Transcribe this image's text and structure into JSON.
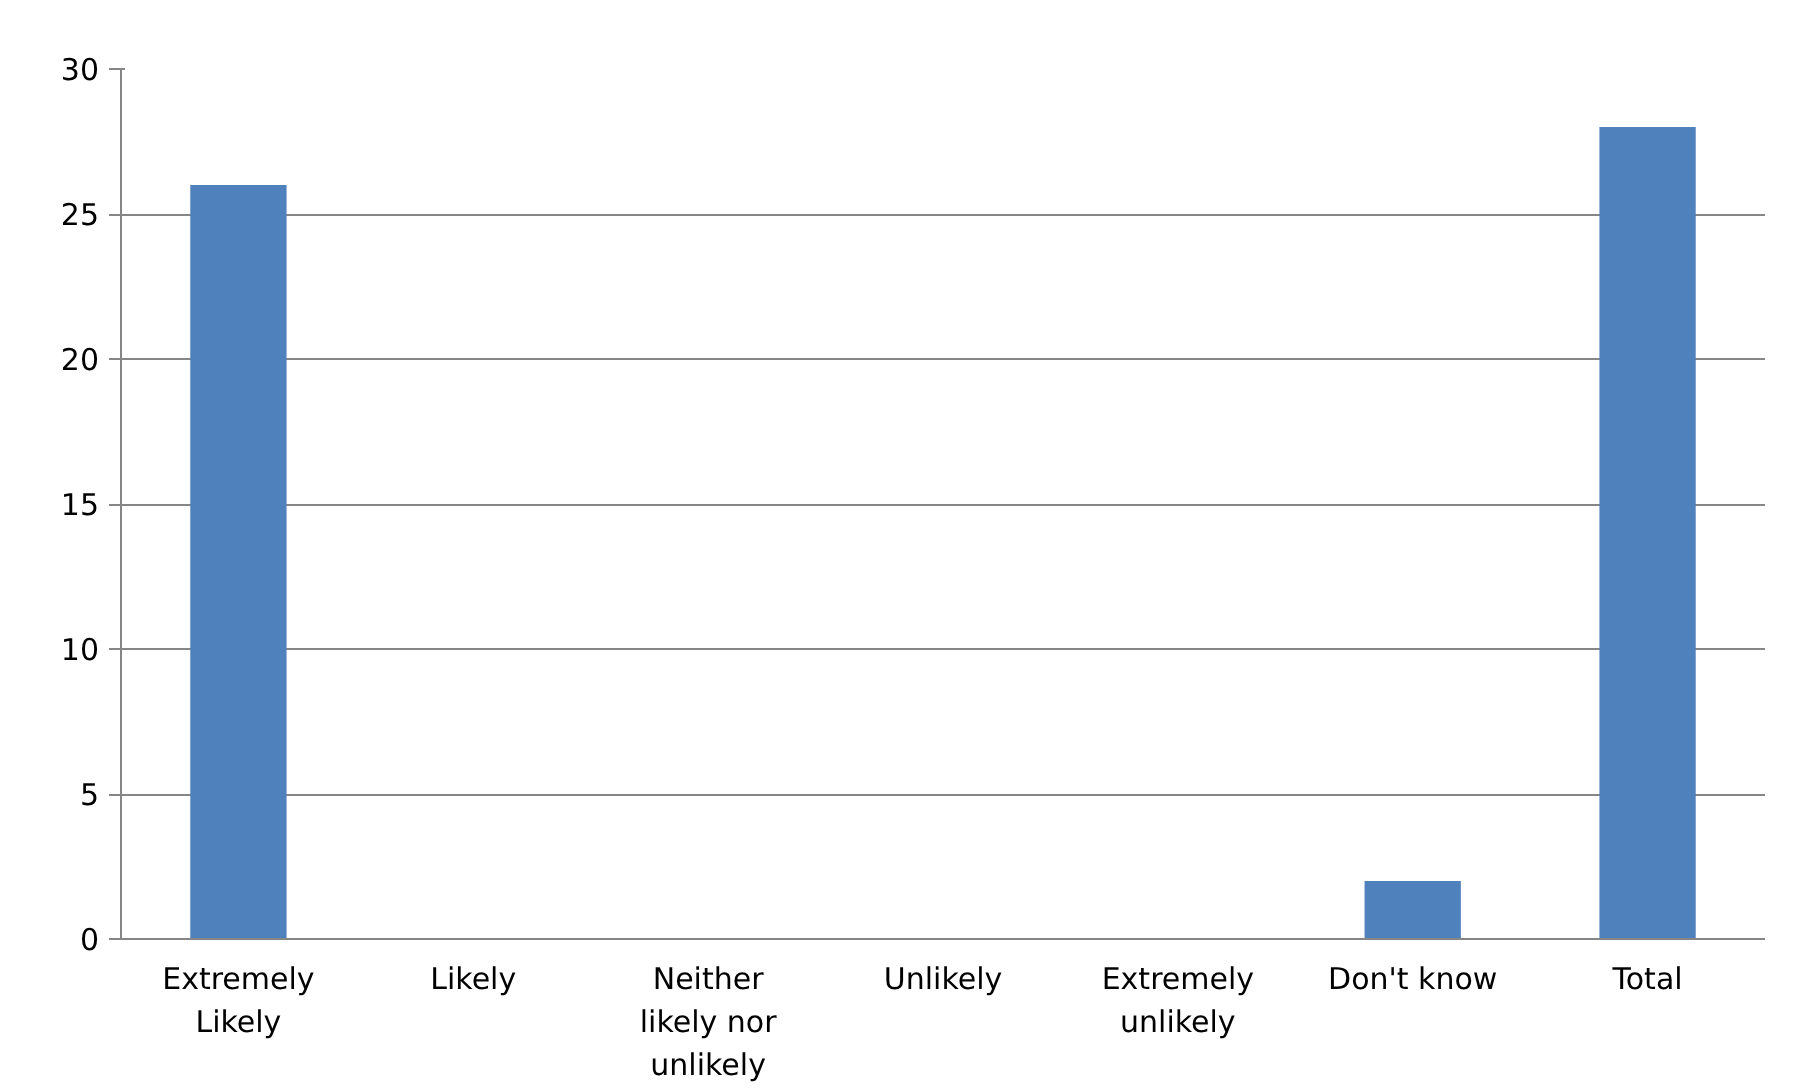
{
  "chart_data": {
    "type": "bar",
    "categories": [
      "Extremely Likely",
      "Likely",
      "Neither likely nor unlikely",
      "Unlikely",
      "Extremely unlikely",
      "Don't know",
      "Total"
    ],
    "values": [
      26,
      0,
      0,
      0,
      0,
      2,
      28
    ],
    "color": "#4f81bd",
    "ylim": [
      0,
      30
    ],
    "yticks": [
      0,
      5,
      10,
      15,
      20,
      25,
      30
    ],
    "grid": "y"
  }
}
